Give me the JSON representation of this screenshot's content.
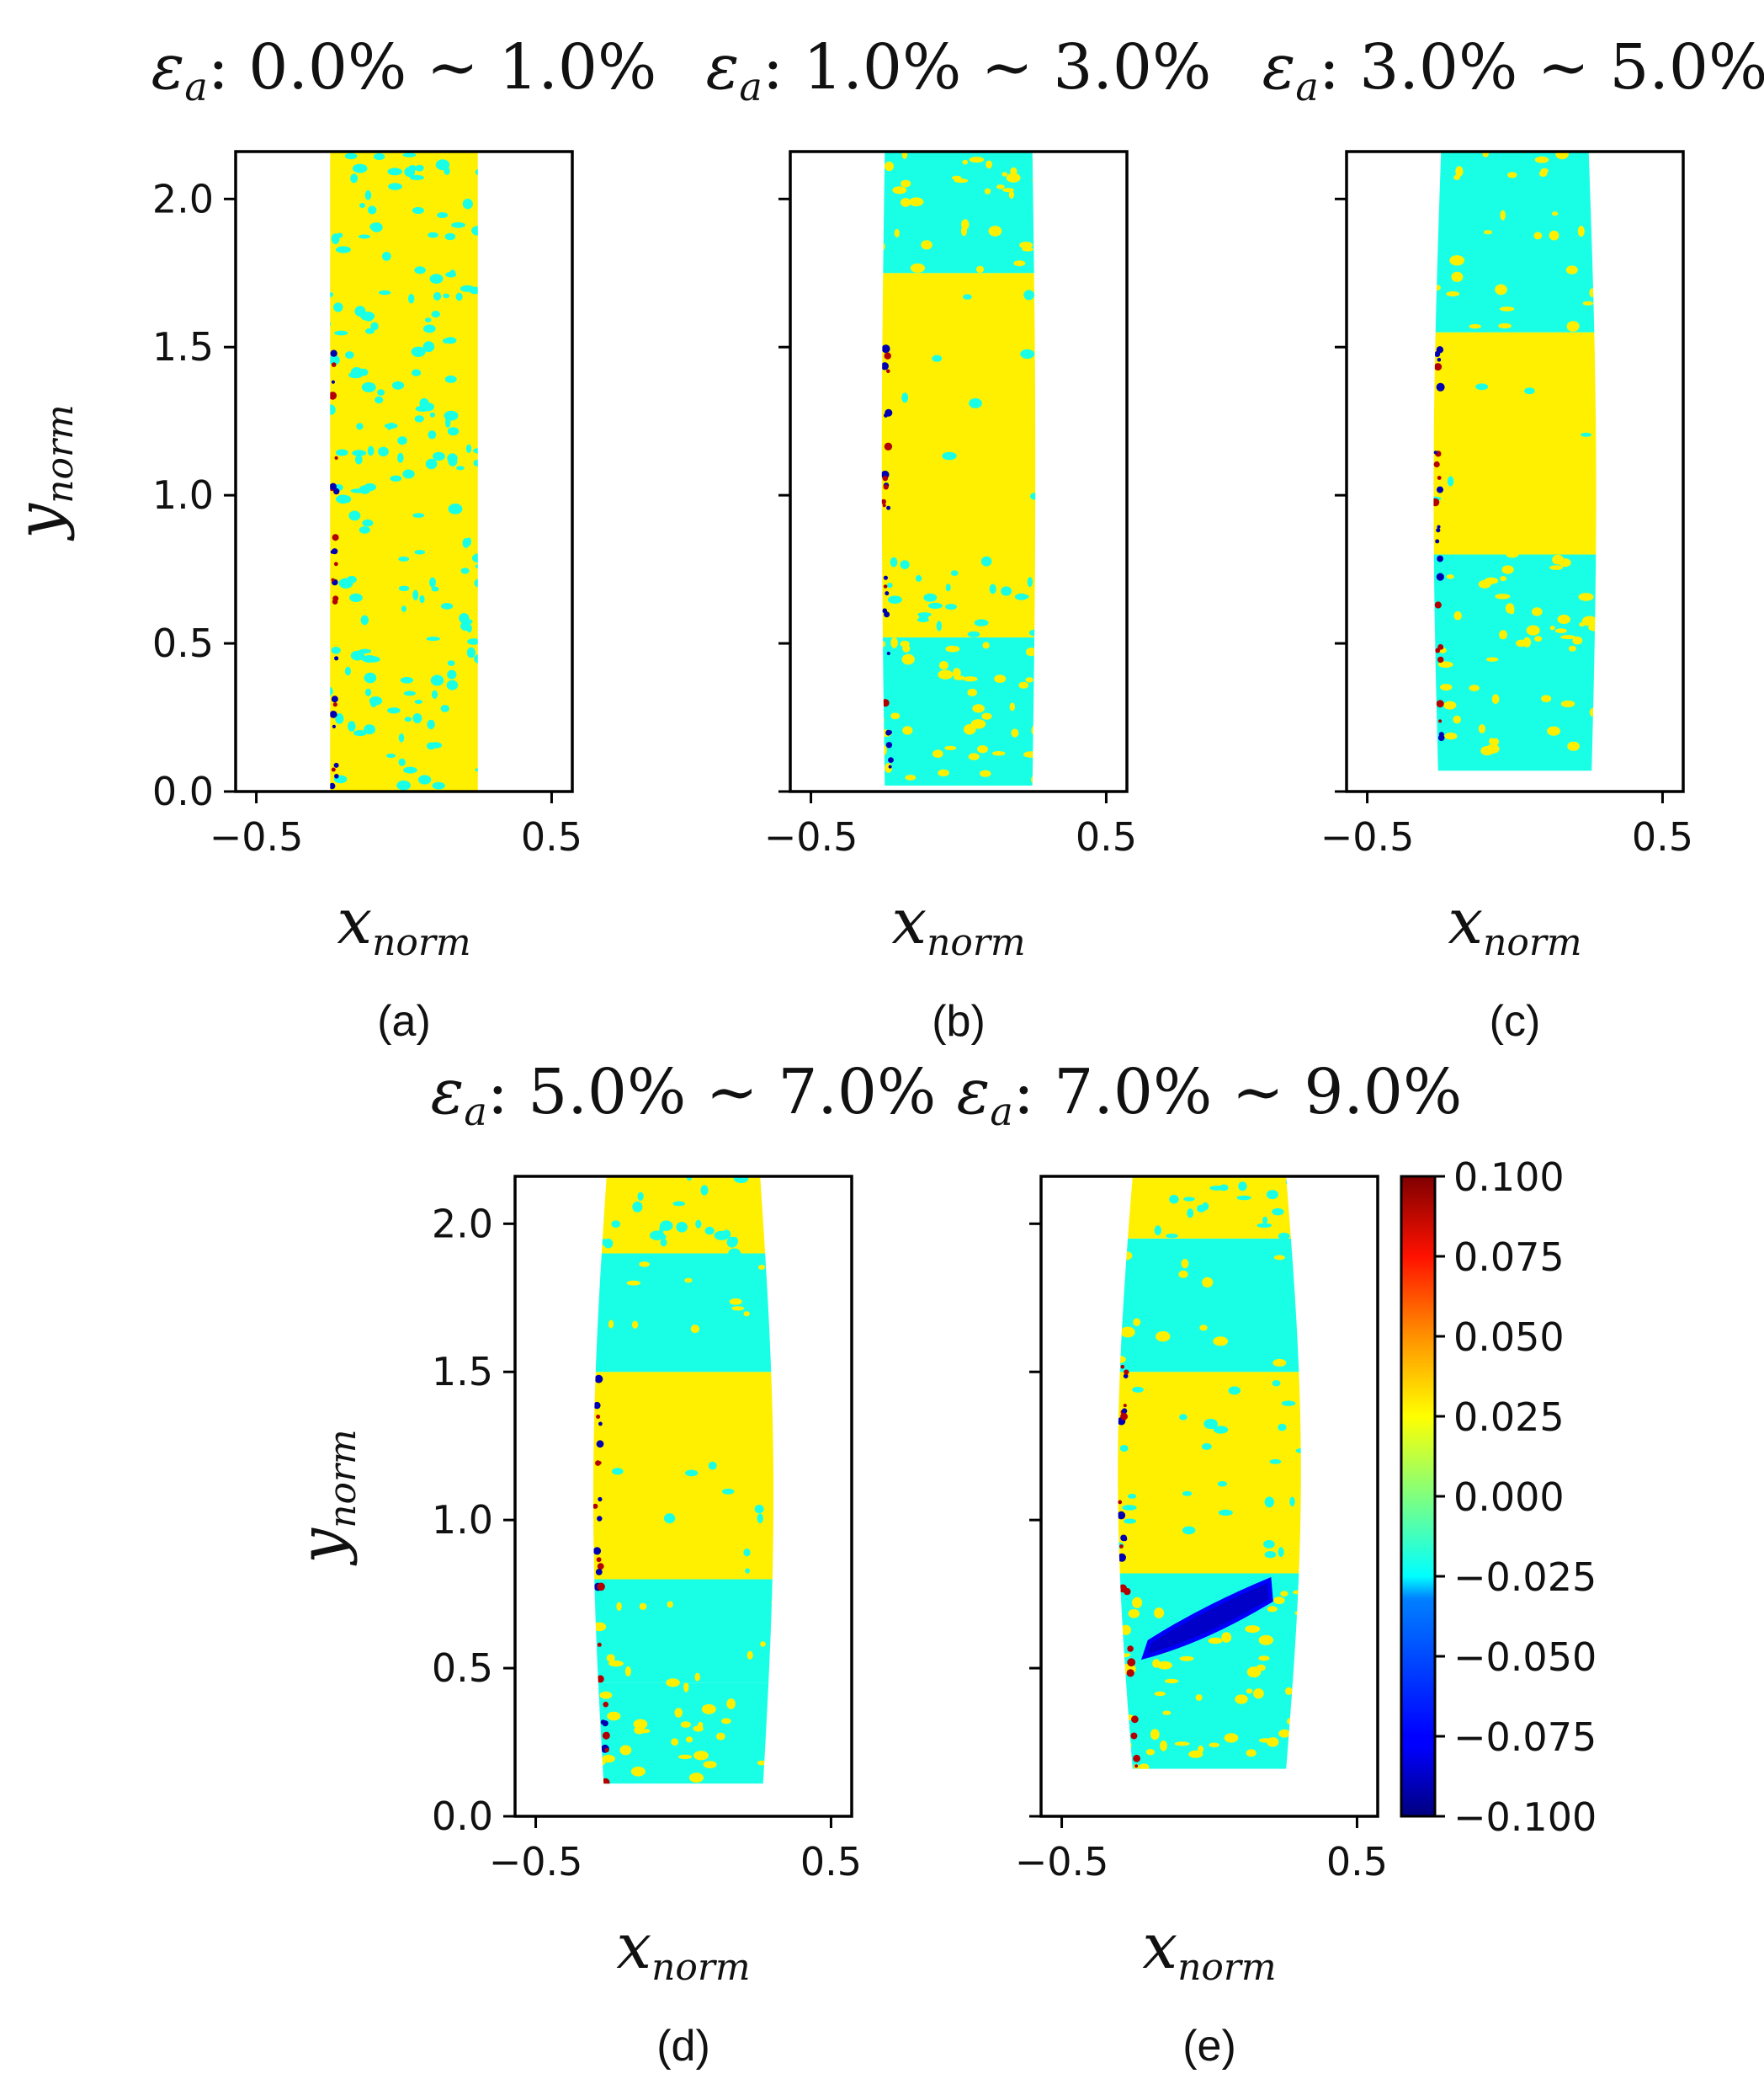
{
  "chart_data": {
    "type": "heatmap",
    "colormap": "jet",
    "colorbar": {
      "min": -0.1,
      "max": 0.1,
      "ticks": [
        "0.100",
        "0.075",
        "0.050",
        "0.025",
        "0.000",
        "−0.025",
        "−0.050",
        "−0.075",
        "−0.100"
      ]
    },
    "x_ticks": [
      "−0.5",
      "0.5"
    ],
    "y_ticks": [
      "0.0",
      "0.5",
      "1.0",
      "1.5",
      "2.0"
    ],
    "xlim": [
      -0.57,
      0.57
    ],
    "ylim": [
      0.0,
      2.16
    ],
    "x_label": {
      "main": "x",
      "sub": "norm"
    },
    "y_label": {
      "main": "y",
      "sub": "norm"
    },
    "title_symbol": {
      "main": "ε",
      "sub": "a"
    },
    "panels": [
      {
        "id": "a",
        "caption": "(a)",
        "title_range": ": 0.0% ~ 1.0%",
        "shape": {
          "y_bottom": 0.0,
          "half_width_top": 0.25,
          "half_width_bottom": 0.25,
          "bulge": 0.0
        },
        "bands": [
          {
            "y0": 0.0,
            "y1": 2.16,
            "base": 0.028,
            "speck": -0.02,
            "density": 0.42
          }
        ],
        "localized_band": null
      },
      {
        "id": "b",
        "caption": "(b)",
        "title_range": ": 1.0% ~ 3.0%",
        "shape": {
          "y_bottom": 0.02,
          "half_width_top": 0.25,
          "half_width_bottom": 0.25,
          "bulge": 0.01
        },
        "bands": [
          {
            "y0": 0.0,
            "y1": 0.52,
            "base": -0.02,
            "speck": 0.028,
            "density": 0.4
          },
          {
            "y0": 0.52,
            "y1": 0.8,
            "base": 0.028,
            "speck": -0.02,
            "density": 0.4
          },
          {
            "y0": 0.8,
            "y1": 1.75,
            "base": 0.028,
            "speck": -0.02,
            "density": 0.04
          },
          {
            "y0": 1.75,
            "y1": 2.16,
            "base": -0.02,
            "speck": 0.028,
            "density": 0.35
          }
        ],
        "localized_band": null
      },
      {
        "id": "c",
        "caption": "(c)",
        "title_range": ": 3.0% ~ 5.0%",
        "shape": {
          "y_bottom": 0.07,
          "half_width_top": 0.25,
          "half_width_bottom": 0.26,
          "bulge": 0.02
        },
        "bands": [
          {
            "y0": 0.0,
            "y1": 0.8,
            "base": -0.02,
            "speck": 0.028,
            "density": 0.3
          },
          {
            "y0": 0.8,
            "y1": 1.55,
            "base": 0.028,
            "speck": -0.02,
            "density": 0.03
          },
          {
            "y0": 1.55,
            "y1": 2.16,
            "base": -0.02,
            "speck": 0.028,
            "density": 0.2
          }
        ],
        "localized_band": null
      },
      {
        "id": "d",
        "caption": "(d)",
        "title_range": ": 5.0% ~ 7.0%",
        "shape": {
          "y_bottom": 0.11,
          "half_width_top": 0.26,
          "half_width_bottom": 0.27,
          "bulge": 0.04
        },
        "bands": [
          {
            "y0": 0.0,
            "y1": 0.45,
            "base": -0.02,
            "speck": 0.028,
            "density": 0.35
          },
          {
            "y0": 0.45,
            "y1": 0.8,
            "base": -0.02,
            "speck": 0.028,
            "density": 0.15
          },
          {
            "y0": 0.8,
            "y1": 1.5,
            "base": 0.028,
            "speck": -0.02,
            "density": 0.05
          },
          {
            "y0": 1.5,
            "y1": 1.9,
            "base": -0.02,
            "speck": 0.028,
            "density": 0.1
          },
          {
            "y0": 1.9,
            "y1": 2.16,
            "base": 0.028,
            "speck": -0.02,
            "density": 0.4
          }
        ],
        "localized_band": null
      },
      {
        "id": "e",
        "caption": "(e)",
        "title_range": ": 7.0% ~ 9.0%",
        "shape": {
          "y_bottom": 0.16,
          "half_width_top": 0.26,
          "half_width_bottom": 0.26,
          "bulge": 0.05
        },
        "bands": [
          {
            "y0": 0.0,
            "y1": 0.55,
            "base": -0.02,
            "speck": 0.028,
            "density": 0.4
          },
          {
            "y0": 0.55,
            "y1": 0.82,
            "base": -0.02,
            "speck": 0.028,
            "density": 0.25
          },
          {
            "y0": 0.82,
            "y1": 1.5,
            "base": 0.028,
            "speck": -0.02,
            "density": 0.15
          },
          {
            "y0": 1.5,
            "y1": 1.95,
            "base": -0.02,
            "speck": 0.028,
            "density": 0.12
          },
          {
            "y0": 1.95,
            "y1": 2.16,
            "base": 0.028,
            "speck": -0.02,
            "density": 0.4
          }
        ],
        "localized_band": {
          "x0": -0.22,
          "y0": 0.55,
          "x1": 0.18,
          "y1": 0.78,
          "value": -0.085
        }
      }
    ]
  }
}
